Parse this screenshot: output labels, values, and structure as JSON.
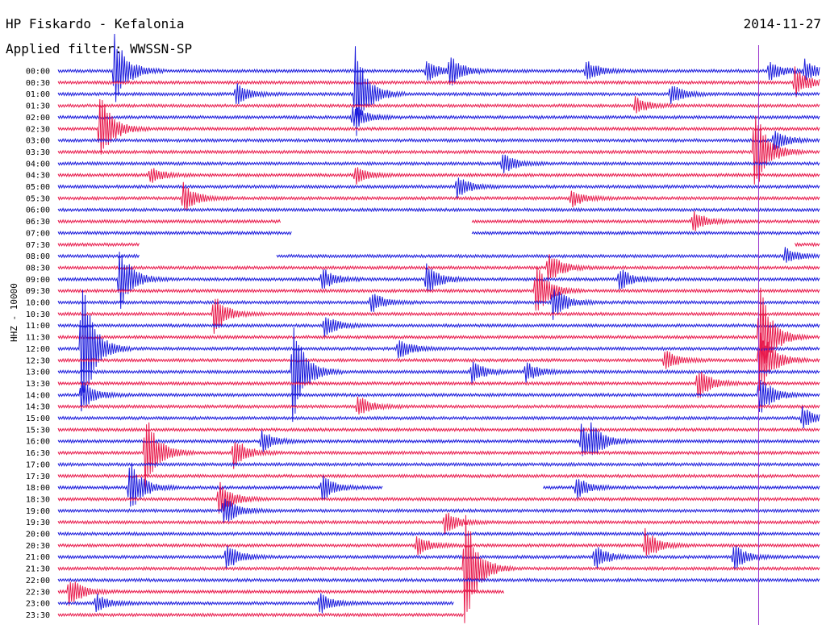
{
  "header": {
    "station": "HP Fiskardo - Kefalonia",
    "filter": "Applied filter: WWSSN-SP",
    "date": "2014-11-27",
    "channel": "HHZ - 10000"
  },
  "chart_data": {
    "type": "line",
    "title": "HP Fiskardo - Kefalonia",
    "subtitle": "Applied filter: WWSSN-SP",
    "ylabel": "HHZ - 10000",
    "grid": false,
    "colors": {
      "even_trace": "#1a1adc",
      "odd_trace": "#e8194b",
      "marker": "#9933cc"
    },
    "row_labels": [
      "00:00",
      "00:30",
      "01:00",
      "01:30",
      "02:00",
      "02:30",
      "03:00",
      "03:30",
      "04:00",
      "04:30",
      "05:00",
      "05:30",
      "06:00",
      "06:30",
      "07:00",
      "07:30",
      "08:00",
      "08:30",
      "09:00",
      "09:30",
      "10:00",
      "10:30",
      "11:00",
      "11:30",
      "12:00",
      "12:30",
      "13:00",
      "13:30",
      "14:00",
      "14:30",
      "15:00",
      "15:30",
      "16:00",
      "16:30",
      "17:00",
      "17:30",
      "18:00",
      "18:30",
      "19:00",
      "19:30",
      "20:00",
      "20:30",
      "21:00",
      "21:30",
      "22:00",
      "22:30",
      "23:00",
      "23:30"
    ],
    "x_range_minutes": [
      0,
      30
    ],
    "marker_minute": 27.6,
    "events": [
      {
        "row": 0,
        "minute": 2.2,
        "amp": 3.5
      },
      {
        "row": 0,
        "minute": 14.5,
        "amp": 1.0
      },
      {
        "row": 0,
        "minute": 15.4,
        "amp": 1.5
      },
      {
        "row": 0,
        "minute": 20.8,
        "amp": 1.0
      },
      {
        "row": 0,
        "minute": 28.0,
        "amp": 1.0
      },
      {
        "row": 0,
        "minute": 29.4,
        "amp": 1.0
      },
      {
        "row": 1,
        "minute": 29.0,
        "amp": 1.5
      },
      {
        "row": 2,
        "minute": 7.0,
        "amp": 1.0
      },
      {
        "row": 2,
        "minute": 11.7,
        "amp": 4.2
      },
      {
        "row": 2,
        "minute": 24.1,
        "amp": 1.0
      },
      {
        "row": 3,
        "minute": 22.7,
        "amp": 0.8
      },
      {
        "row": 4,
        "minute": 11.6,
        "amp": 1.2
      },
      {
        "row": 5,
        "minute": 1.6,
        "amp": 3.5
      },
      {
        "row": 6,
        "minute": 28.2,
        "amp": 1.0
      },
      {
        "row": 7,
        "minute": 27.4,
        "amp": 4.5
      },
      {
        "row": 8,
        "minute": 17.5,
        "amp": 1.0
      },
      {
        "row": 9,
        "minute": 3.6,
        "amp": 0.8
      },
      {
        "row": 9,
        "minute": 11.7,
        "amp": 0.8
      },
      {
        "row": 10,
        "minute": 15.7,
        "amp": 1.0
      },
      {
        "row": 11,
        "minute": 4.9,
        "amp": 1.5
      },
      {
        "row": 11,
        "minute": 20.2,
        "amp": 0.8
      },
      {
        "row": 13,
        "minute": 25.0,
        "amp": 1.0
      },
      {
        "row": 16,
        "minute": 28.6,
        "amp": 0.8
      },
      {
        "row": 17,
        "minute": 19.3,
        "amp": 1.5
      },
      {
        "row": 18,
        "minute": 2.4,
        "amp": 3.0
      },
      {
        "row": 18,
        "minute": 10.4,
        "amp": 1.0
      },
      {
        "row": 18,
        "minute": 14.5,
        "amp": 1.5
      },
      {
        "row": 18,
        "minute": 22.1,
        "amp": 1.0
      },
      {
        "row": 19,
        "minute": 18.8,
        "amp": 2.5
      },
      {
        "row": 20,
        "minute": 12.3,
        "amp": 1.0
      },
      {
        "row": 20,
        "minute": 19.5,
        "amp": 1.5
      },
      {
        "row": 21,
        "minute": 6.1,
        "amp": 2.0
      },
      {
        "row": 22,
        "minute": 10.5,
        "amp": 1.0
      },
      {
        "row": 23,
        "minute": 27.6,
        "amp": 5.0
      },
      {
        "row": 24,
        "minute": 0.9,
        "amp": 6.5
      },
      {
        "row": 24,
        "minute": 13.4,
        "amp": 1.0
      },
      {
        "row": 25,
        "minute": 23.9,
        "amp": 1.0
      },
      {
        "row": 25,
        "minute": 27.6,
        "amp": 3.5
      },
      {
        "row": 26,
        "minute": 9.2,
        "amp": 5.0
      },
      {
        "row": 26,
        "minute": 16.3,
        "amp": 1.0
      },
      {
        "row": 26,
        "minute": 18.4,
        "amp": 1.0
      },
      {
        "row": 27,
        "minute": 25.2,
        "amp": 1.5
      },
      {
        "row": 28,
        "minute": 0.9,
        "amp": 1.5
      },
      {
        "row": 28,
        "minute": 27.6,
        "amp": 2.0
      },
      {
        "row": 29,
        "minute": 11.8,
        "amp": 1.0
      },
      {
        "row": 30,
        "minute": 29.3,
        "amp": 1.0
      },
      {
        "row": 32,
        "minute": 8.0,
        "amp": 1.0
      },
      {
        "row": 32,
        "minute": 20.6,
        "amp": 1.5
      },
      {
        "row": 32,
        "minute": 21.0,
        "amp": 1.2
      },
      {
        "row": 33,
        "minute": 3.4,
        "amp": 4.0
      },
      {
        "row": 33,
        "minute": 6.9,
        "amp": 1.5
      },
      {
        "row": 36,
        "minute": 2.8,
        "amp": 2.5
      },
      {
        "row": 36,
        "minute": 10.4,
        "amp": 1.2
      },
      {
        "row": 36,
        "minute": 20.4,
        "amp": 1.0
      },
      {
        "row": 37,
        "minute": 6.3,
        "amp": 1.8
      },
      {
        "row": 38,
        "minute": 6.5,
        "amp": 1.5
      },
      {
        "row": 39,
        "minute": 15.2,
        "amp": 1.2
      },
      {
        "row": 41,
        "minute": 14.1,
        "amp": 1.0
      },
      {
        "row": 41,
        "minute": 23.1,
        "amp": 1.5
      },
      {
        "row": 42,
        "minute": 6.6,
        "amp": 1.2
      },
      {
        "row": 42,
        "minute": 21.1,
        "amp": 1.2
      },
      {
        "row": 42,
        "minute": 26.6,
        "amp": 1.2
      },
      {
        "row": 43,
        "minute": 16.0,
        "amp": 5.5
      },
      {
        "row": 45,
        "minute": 0.4,
        "amp": 1.5
      },
      {
        "row": 46,
        "minute": 1.5,
        "amp": 0.8
      },
      {
        "row": 46,
        "minute": 10.3,
        "amp": 1.0
      }
    ],
    "gaps": [
      {
        "row": 13,
        "start_minute": 8.8,
        "end_minute": 16.3
      },
      {
        "row": 14,
        "start_minute": 9.2,
        "end_minute": 16.3
      },
      {
        "row": 15,
        "start_minute": 3.2,
        "end_minute": 29.0
      },
      {
        "row": 16,
        "start_minute": 3.2,
        "end_minute": 8.6
      },
      {
        "row": 36,
        "start_minute": 12.8,
        "end_minute": 19.1
      },
      {
        "row": 45,
        "start_minute": 17.6,
        "end_minute": 30.0
      },
      {
        "row": 46,
        "start_minute": 15.6,
        "end_minute": 30.0
      },
      {
        "row": 47,
        "start_minute": 16.0,
        "end_minute": 30.0
      }
    ]
  }
}
